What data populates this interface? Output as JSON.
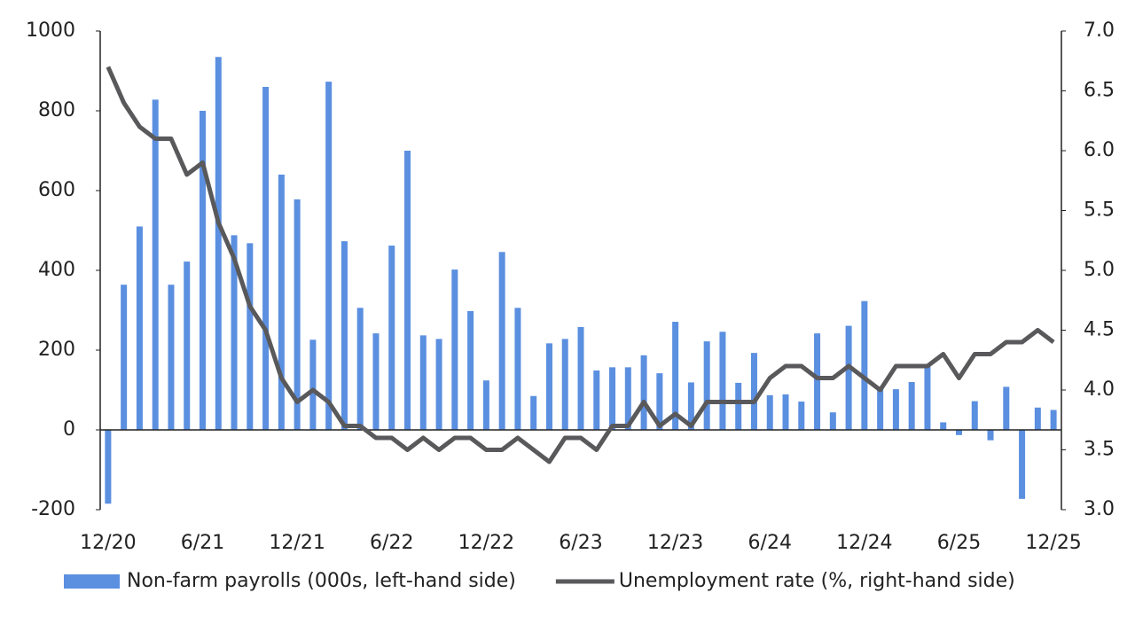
{
  "chart_data": {
    "type": "bar_line",
    "categories": [
      "12/20",
      null,
      null,
      null,
      null,
      null,
      "6/21",
      null,
      null,
      null,
      null,
      null,
      "12/21",
      null,
      null,
      null,
      null,
      null,
      "6/22",
      null,
      null,
      null,
      null,
      null,
      "12/22",
      null,
      null,
      null,
      null,
      null,
      "6/23",
      null,
      null,
      null,
      null,
      null,
      "12/23",
      null,
      null,
      null,
      null,
      null,
      "6/24",
      null,
      null,
      null,
      null,
      null,
      "12/24",
      null,
      null,
      null,
      null,
      null,
      "6/25",
      null,
      null,
      null,
      null,
      null,
      "12/25"
    ],
    "series": [
      {
        "name": "Non-farm payrolls (000s, left-hand side)",
        "type": "bar",
        "color": "#5b8fe0",
        "values": [
          -185,
          364,
          510,
          828,
          364,
          422,
          800,
          935,
          488,
          468,
          860,
          640,
          578,
          226,
          873,
          473,
          306,
          242,
          462,
          700,
          237,
          228,
          402,
          298,
          124,
          446,
          306,
          85,
          217,
          228,
          258,
          149,
          157,
          157,
          187,
          142,
          271,
          119,
          222,
          246,
          118,
          193,
          87,
          89,
          71,
          242,
          44,
          261,
          323,
          102,
          102,
          120,
          158,
          19,
          -13,
          72,
          -26,
          108,
          -173,
          56,
          50
        ]
      },
      {
        "name": "Unemployment rate (%, right-hand side)",
        "type": "line",
        "axis": "y2",
        "color": "#59595b",
        "values": [
          6.7,
          6.4,
          6.2,
          6.1,
          6.1,
          5.8,
          5.9,
          5.4,
          5.1,
          4.7,
          4.5,
          4.1,
          3.9,
          4.0,
          3.9,
          3.7,
          3.7,
          3.6,
          3.6,
          3.5,
          3.6,
          3.5,
          3.6,
          3.6,
          3.5,
          3.5,
          3.6,
          3.5,
          3.4,
          3.6,
          3.6,
          3.5,
          3.7,
          3.7,
          3.9,
          3.7,
          3.8,
          3.7,
          3.9,
          3.9,
          3.9,
          3.9,
          4.1,
          4.2,
          4.2,
          4.1,
          4.1,
          4.2,
          4.1,
          4.0,
          4.2,
          4.2,
          4.2,
          4.3,
          4.1,
          4.3,
          4.3,
          4.4,
          4.4,
          4.5,
          4.4
        ]
      }
    ],
    "ylim": [
      -200,
      1000
    ],
    "yticks": [
      -200,
      0,
      200,
      400,
      600,
      800,
      1000
    ],
    "y2lim": [
      3,
      7
    ],
    "y2ticks": [
      {
        "value": 3,
        "label": "3.0"
      },
      3.5,
      {
        "value": 4,
        "label": "4.0"
      },
      4.5,
      {
        "value": 5,
        "label": "5.0"
      },
      5.5,
      {
        "value": 6,
        "label": "6.0"
      },
      6.5,
      {
        "value": 7,
        "label": "7.0"
      }
    ],
    "legend": "bottom"
  }
}
